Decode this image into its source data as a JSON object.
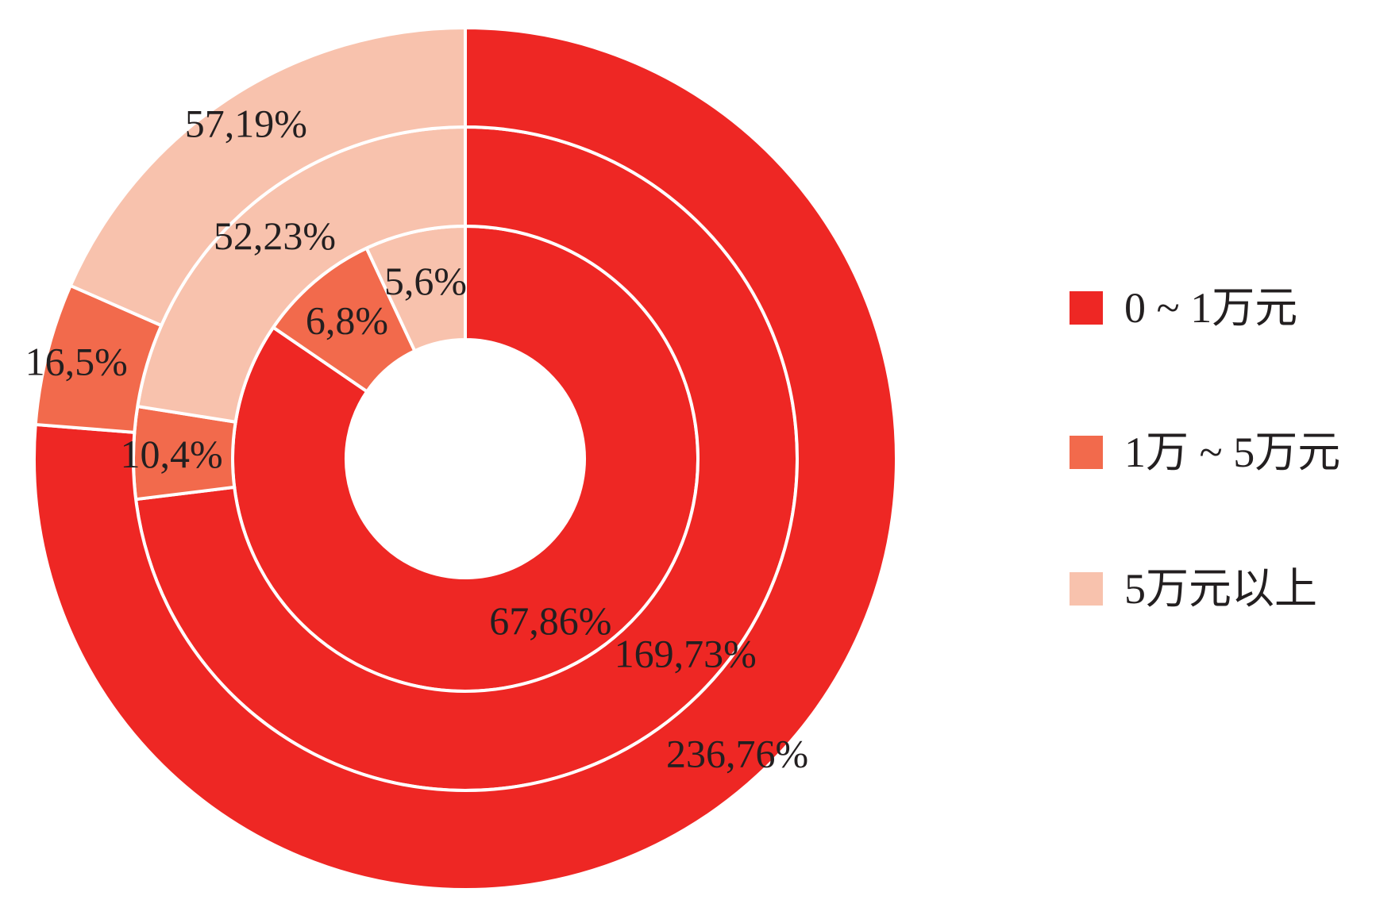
{
  "chart_data": {
    "type": "pie",
    "subtype": "concentric-donut",
    "description": "Three concentric donut rings, slices start at 12 o'clock and run clockwise in legend order",
    "background": "#ffffff",
    "label_color": "#231f20",
    "separator_color": "#ffffff",
    "legend_position": "right",
    "legend": [
      {
        "label": "0 ~ 1万元",
        "color": "#ee2724"
      },
      {
        "label": "1万 ~ 5万元",
        "color": "#f26a4c"
      },
      {
        "label": "5万元以上",
        "color": "#f8c2ad"
      }
    ],
    "rings": [
      {
        "name": "inner",
        "values": [
          67.86,
          6.8,
          5.6
        ],
        "labels": [
          "67,86%",
          "6,8%",
          "5,6%"
        ]
      },
      {
        "name": "middle",
        "values": [
          169.73,
          10.4,
          52.23
        ],
        "labels": [
          "169,73%",
          "10,4%",
          "52,23%"
        ]
      },
      {
        "name": "outer",
        "values": [
          236.76,
          16.5,
          57.19
        ],
        "labels": [
          "236,76%",
          "16,5%",
          "57,19%"
        ]
      }
    ]
  }
}
